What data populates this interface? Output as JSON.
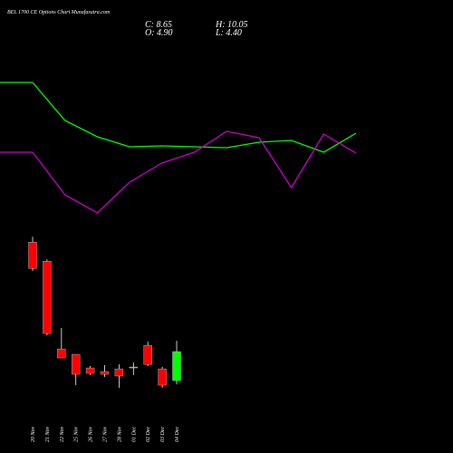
{
  "chart_data": {
    "type": "candlestick",
    "title": "BEL 1700 CE Options Chart Munafasutra.com",
    "stats": [
      "C: 8.65",
      "H: 10.05",
      "O: 4.90",
      "L: 4.40"
    ],
    "categories": [
      "20 Nov",
      "21 Nov",
      "22 Nov",
      "25 Nov",
      "26 Nov",
      "27 Nov",
      "28 Nov",
      "01 Dec",
      "02 Dec",
      "03 Dec",
      "04 Dec"
    ],
    "open": [
      22.83,
      20.37,
      9.0,
      8.3,
      6.54,
      6.07,
      6.42,
      6.54,
      9.47,
      6.42,
      4.9
    ],
    "high": [
      23.53,
      20.6,
      11.7,
      8.3,
      6.78,
      6.9,
      7.0,
      7.24,
      9.94,
      6.66,
      10.05
    ],
    "low": [
      19.08,
      10.76,
      7.83,
      4.31,
      5.6,
      5.37,
      3.96,
      5.6,
      6.78,
      3.96,
      4.4
    ],
    "close": [
      19.43,
      11.0,
      7.83,
      5.72,
      5.84,
      5.72,
      5.49,
      6.66,
      7.0,
      4.31,
      8.65
    ],
    "up_color": "#00ff00",
    "down_color": "#ff0000",
    "ylim": [
      2.5,
      25
    ],
    "series": [
      {
        "color": "#00ff00",
        "values": [
          209,
          167,
          149,
          138,
          139,
          138,
          137,
          143,
          145,
          132,
          153
        ]
      },
      {
        "color": "#cc00cc",
        "values": [
          132,
          85,
          65,
          99,
          120,
          132,
          155,
          148,
          93,
          152,
          131
        ]
      }
    ],
    "line_ylim": [
      0,
      300
    ]
  }
}
